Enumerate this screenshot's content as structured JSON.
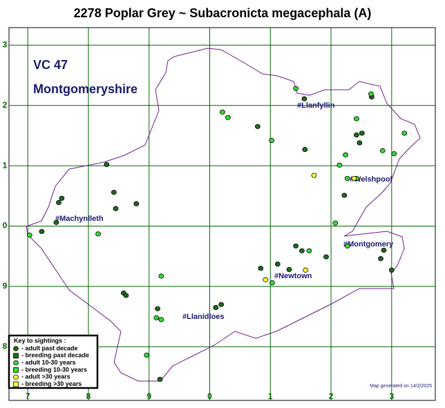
{
  "title": "2278 Poplar Grey ~ Subacronicta megacephala (A)",
  "map": {
    "region_code": "VC 47",
    "region_name": "Montgomeryshire",
    "places": [
      "#Llanfyllin",
      "#Welshpool",
      "#Machynlleth",
      "#Montgomery",
      "#Newtown",
      "#Llanidloes"
    ],
    "xlim": [
      -0.31,
      6.72
    ],
    "ylim": [
      -0.89,
      5.29
    ],
    "xticks": [
      {
        "value": 0,
        "label": "7"
      },
      {
        "value": 1,
        "label": "8"
      },
      {
        "value": 2,
        "label": "9"
      },
      {
        "value": 3,
        "label": "0"
      },
      {
        "value": 4,
        "label": "1"
      },
      {
        "value": 5,
        "label": "2"
      },
      {
        "value": 6,
        "label": "3"
      }
    ],
    "yticks": [
      {
        "value": 0,
        "label": "8"
      },
      {
        "value": 1,
        "label": "9"
      },
      {
        "value": 2,
        "label": "0"
      },
      {
        "value": 3,
        "label": "1"
      },
      {
        "value": 4,
        "label": "2"
      },
      {
        "value": 5,
        "label": "3"
      }
    ],
    "grid_color": "#006400",
    "legend": {
      "title": "Key to sightings :",
      "items": [
        {
          "label": "- adult past decade",
          "shape": "circle",
          "color": "#1d6b1d",
          "x": [
            1.3,
            1.42,
            1.45,
            1.79,
            0.56,
            0.51,
            0.47,
            0.23,
            1.58,
            1.62,
            2.14,
            3.1,
            3.19,
            3.79,
            4.57,
            4.42,
            4.52,
            4.12,
            4.31,
            3.84,
            4.92,
            5.47,
            5.42,
            5.51,
            5.67,
            5.22,
            5.87,
            5.82,
            6.0,
            2.18,
            4.56
          ],
          "y": [
            3.02,
            2.56,
            2.29,
            2.37,
            2.46,
            2.39,
            2.06,
            1.91,
            0.89,
            0.85,
            0.63,
            0.65,
            0.7,
            3.65,
            3.27,
            1.67,
            1.59,
            1.37,
            1.28,
            1.3,
            1.49,
            3.38,
            3.51,
            3.54,
            4.14,
            2.51,
            1.6,
            1.46,
            1.27,
            -0.54,
            4.11
          ]
        },
        {
          "label": "- breeding past decade",
          "shape": "square",
          "color": "#1d6b1d",
          "x": [],
          "y": []
        },
        {
          "label": "- adult 10-30 years",
          "shape": "circle",
          "color": "#33dd33",
          "x": [
            0.03,
            1.16,
            2.2,
            2.12,
            2.2,
            1.96,
            3.21,
            3.3,
            4.02,
            4.42,
            5.24,
            5.14,
            5.27,
            5.42,
            5.85,
            5.66,
            6.04,
            6.21,
            5.07,
            5.27,
            4.64,
            4.03,
            5.42
          ],
          "y": [
            1.85,
            1.87,
            1.17,
            0.48,
            0.45,
            -0.14,
            3.89,
            3.8,
            3.42,
            4.28,
            3.18,
            3.01,
            2.79,
            3.78,
            3.25,
            4.19,
            3.2,
            3.54,
            2.05,
            1.67,
            1.59,
            1.06,
            2.79
          ]
        },
        {
          "label": "- breeding 10-30 years",
          "shape": "square",
          "color": "#33dd33",
          "x": [],
          "y": []
        },
        {
          "label": "- adult >30 years",
          "shape": "circle",
          "color": "#ffff33",
          "x": [
            4.72,
            5.38,
            3.92,
            4.58
          ],
          "y": [
            2.84,
            2.79,
            1.11,
            1.27
          ]
        },
        {
          "label": "- breeding >30 years",
          "shape": "square",
          "color": "#ffff33",
          "x": [],
          "y": []
        }
      ]
    }
  },
  "footer": "Map generated on 14/2/2025"
}
